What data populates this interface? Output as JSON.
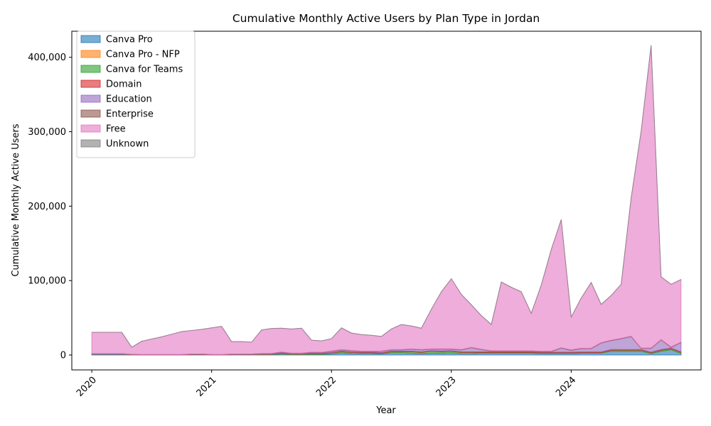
{
  "chart_data": {
    "type": "area",
    "stacked": true,
    "title": "Cumulative Monthly Active Users by Plan Type in Jordan",
    "xlabel": "Year",
    "ylabel": "Cumulative Monthly Active Users",
    "ylim": [
      -20000,
      435000
    ],
    "yticks": [
      0,
      100000,
      200000,
      300000,
      400000
    ],
    "ytick_labels": [
      "0",
      "100,000",
      "200,000",
      "300,000",
      "400,000"
    ],
    "xticks": [
      "2020-01",
      "2021-01",
      "2022-01",
      "2023-01",
      "2024-01"
    ],
    "xtick_labels": [
      "2020",
      "2021",
      "2022",
      "2023",
      "2024"
    ],
    "xlim": [
      "2019-11",
      "2025-02"
    ],
    "legend_position": "upper left",
    "x": [
      "2020-01",
      "2020-02",
      "2020-03",
      "2020-04",
      "2020-05",
      "2020-06",
      "2020-07",
      "2020-08",
      "2020-09",
      "2020-10",
      "2020-11",
      "2020-12",
      "2021-01",
      "2021-02",
      "2021-03",
      "2021-04",
      "2021-05",
      "2021-06",
      "2021-07",
      "2021-08",
      "2021-09",
      "2021-10",
      "2021-11",
      "2021-12",
      "2022-01",
      "2022-02",
      "2022-03",
      "2022-04",
      "2022-05",
      "2022-06",
      "2022-07",
      "2022-08",
      "2022-09",
      "2022-10",
      "2022-11",
      "2022-12",
      "2023-01",
      "2023-02",
      "2023-03",
      "2023-04",
      "2023-05",
      "2023-06",
      "2023-07",
      "2023-08",
      "2023-09",
      "2023-10",
      "2023-11",
      "2023-12",
      "2024-01",
      "2024-02",
      "2024-03",
      "2024-04",
      "2024-05",
      "2024-06",
      "2024-07",
      "2024-08",
      "2024-09",
      "2024-10",
      "2024-11",
      "2024-12"
    ],
    "series": [
      {
        "name": "Canva Pro",
        "color": "#1f77b4",
        "values": [
          1000,
          1000,
          1000,
          1000,
          500,
          300,
          300,
          300,
          300,
          300,
          500,
          500,
          300,
          300,
          500,
          500,
          500,
          700,
          700,
          1500,
          700,
          700,
          1000,
          1000,
          1500,
          3000,
          2000,
          2000,
          2000,
          1500,
          3000,
          3000,
          2500,
          2000,
          2500,
          2500,
          3000,
          2000,
          2000,
          2500,
          2500,
          2500,
          2500,
          2500,
          2500,
          2000,
          2000,
          2000,
          2000,
          2500,
          2500,
          2500,
          5000,
          5000,
          5000,
          5000,
          2000,
          5000,
          7000,
          2000
        ]
      },
      {
        "name": "Canva Pro - NFP",
        "color": "#ff7f0e",
        "values": [
          0,
          0,
          0,
          0,
          0,
          0,
          0,
          0,
          0,
          0,
          0,
          0,
          0,
          0,
          0,
          0,
          0,
          0,
          0,
          0,
          0,
          0,
          0,
          0,
          0,
          0,
          0,
          0,
          0,
          0,
          0,
          0,
          0,
          0,
          0,
          0,
          0,
          0,
          0,
          0,
          0,
          0,
          0,
          0,
          0,
          0,
          0,
          0,
          0,
          0,
          0,
          0,
          0,
          0,
          0,
          0,
          0,
          0,
          0,
          0
        ]
      },
      {
        "name": "Canva for Teams",
        "color": "#2ca02c",
        "values": [
          200,
          200,
          200,
          200,
          100,
          100,
          100,
          100,
          100,
          100,
          200,
          200,
          100,
          100,
          200,
          200,
          200,
          300,
          300,
          1000,
          500,
          500,
          1000,
          800,
          1500,
          1500,
          1500,
          1000,
          1000,
          1000,
          1500,
          1500,
          2000,
          1500,
          2500,
          2000,
          2000,
          1500,
          1500,
          1000,
          1000,
          1000,
          1000,
          1000,
          1000,
          1000,
          1000,
          1000,
          1000,
          800,
          800,
          800,
          1500,
          1500,
          1500,
          1500,
          1000,
          1500,
          1500,
          1500
        ]
      },
      {
        "name": "Domain",
        "color": "#d62728",
        "values": [
          200,
          200,
          200,
          200,
          100,
          100,
          100,
          100,
          100,
          100,
          200,
          200,
          100,
          100,
          200,
          200,
          200,
          300,
          300,
          500,
          300,
          300,
          500,
          500,
          500,
          800,
          700,
          800,
          800,
          700,
          800,
          800,
          800,
          800,
          800,
          800,
          800,
          800,
          800,
          800,
          800,
          800,
          800,
          800,
          800,
          800,
          800,
          800,
          800,
          800,
          800,
          800,
          800,
          800,
          800,
          800,
          800,
          800,
          800,
          800
        ]
      },
      {
        "name": "Education",
        "color": "#9467bd",
        "values": [
          500,
          500,
          500,
          500,
          200,
          100,
          100,
          100,
          100,
          100,
          500,
          500,
          200,
          100,
          400,
          400,
          500,
          600,
          700,
          800,
          800,
          800,
          1000,
          1000,
          1500,
          1500,
          1500,
          1000,
          800,
          1800,
          1500,
          1500,
          2500,
          2500,
          2000,
          2500,
          2000,
          2500,
          5500,
          3000,
          1000,
          800,
          800,
          800,
          800,
          800,
          800,
          5500,
          2500,
          4500,
          4500,
          12000,
          12000,
          14500,
          17500,
          1500,
          5000,
          13000,
          1000,
          12500
        ]
      },
      {
        "name": "Enterprise",
        "color": "#8c564b",
        "values": [
          100,
          100,
          100,
          100,
          50,
          50,
          50,
          50,
          50,
          50,
          100,
          100,
          50,
          50,
          100,
          100,
          100,
          200,
          200,
          300,
          200,
          200,
          300,
          300,
          400,
          500,
          400,
          400,
          400,
          400,
          500,
          500,
          500,
          500,
          500,
          500,
          500,
          500,
          500,
          500,
          500,
          500,
          500,
          500,
          500,
          500,
          500,
          500,
          500,
          500,
          500,
          500,
          500,
          500,
          500,
          500,
          500,
          500,
          500,
          500
        ]
      },
      {
        "name": "Free",
        "color": "#e377c2",
        "values": [
          28500,
          28500,
          28500,
          28500,
          9550,
          17850,
          20850,
          23850,
          27350,
          30850,
          31500,
          33000,
          35750,
          37850,
          16600,
          16600,
          15800,
          31600,
          33500,
          31900,
          32500,
          33500,
          16200,
          15400,
          16600,
          29200,
          23400,
          22300,
          21500,
          19600,
          27700,
          33700,
          30700,
          28700,
          53200,
          76700,
          94200,
          74200,
          57200,
          45200,
          35200,
          92400,
          85400,
          79400,
          50400,
          88900,
          136400,
          172200,
          44200,
          67400,
          88400,
          51400,
          60200,
          72700,
          185700,
          291200,
          406700,
          84200,
          84200,
          84200
        ]
      },
      {
        "name": "Unknown",
        "color": "#7f7f7f",
        "values": [
          0,
          0,
          0,
          0,
          0,
          0,
          0,
          0,
          0,
          0,
          0,
          0,
          0,
          0,
          0,
          0,
          0,
          0,
          0,
          0,
          0,
          0,
          0,
          0,
          0,
          0,
          0,
          0,
          0,
          0,
          0,
          0,
          0,
          0,
          0,
          0,
          0,
          0,
          0,
          0,
          0,
          0,
          0,
          0,
          0,
          0,
          0,
          0,
          0,
          0,
          0,
          0,
          0,
          0,
          0,
          0,
          0,
          0,
          0,
          0
        ]
      }
    ]
  }
}
